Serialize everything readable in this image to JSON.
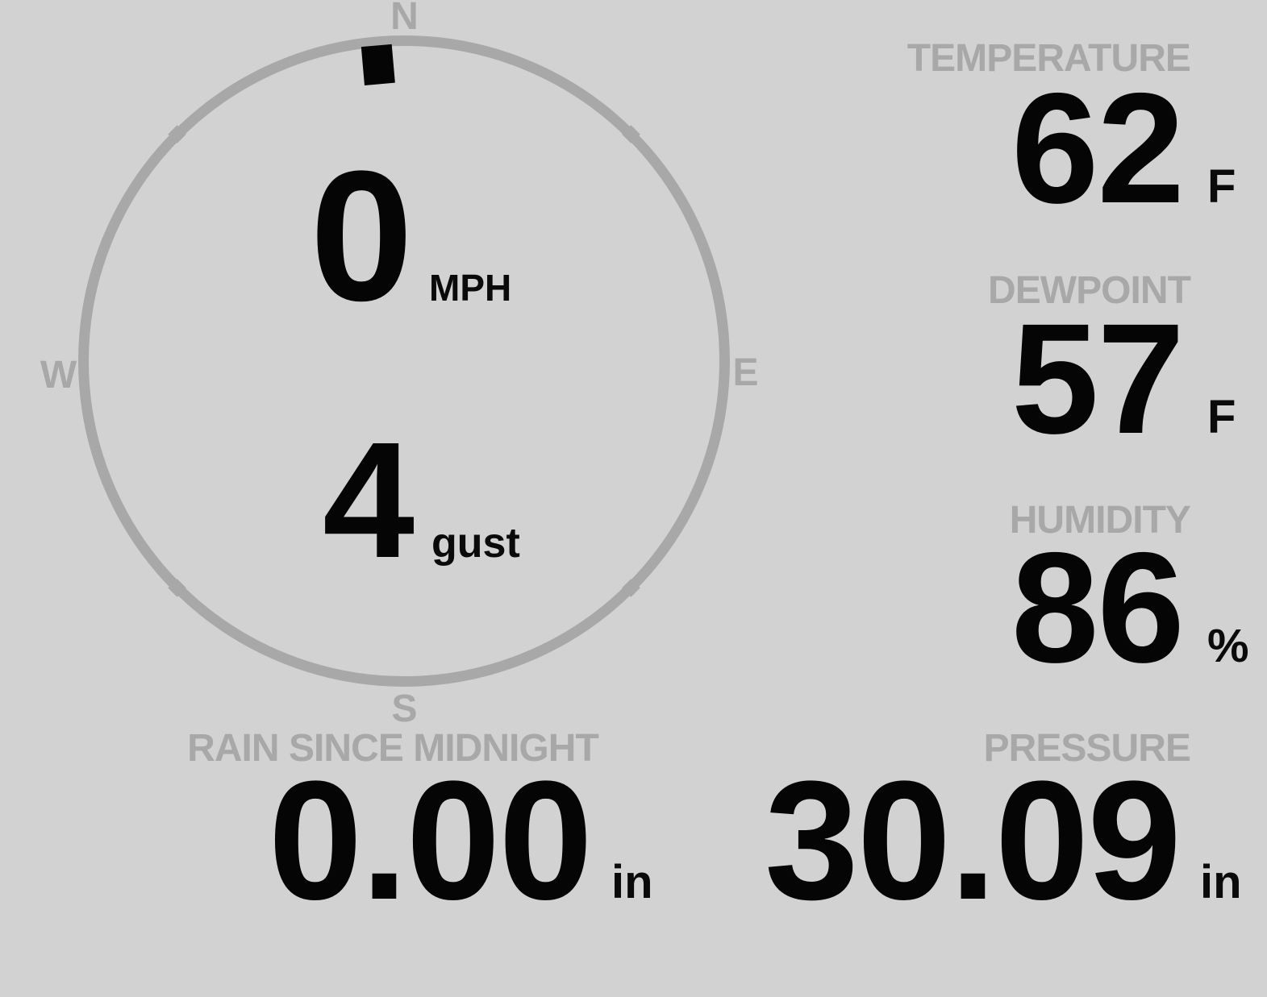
{
  "colors": {
    "background": "#d2d2d2",
    "muted_gray": "#a8a8a8",
    "ink_black": "#050505"
  },
  "compass": {
    "cardinal_n": "N",
    "cardinal_e": "E",
    "cardinal_s": "S",
    "cardinal_w": "W",
    "wind_speed": "0",
    "wind_speed_unit": "MPH",
    "wind_gust": "4",
    "wind_gust_unit": "gust",
    "wind_direction_deg": 355
  },
  "tiles": {
    "temperature": {
      "label": "TEMPERATURE",
      "value": "62",
      "unit": "F"
    },
    "dewpoint": {
      "label": "DEWPOINT",
      "value": "57",
      "unit": "F"
    },
    "humidity": {
      "label": "HUMIDITY",
      "value": "86",
      "unit": "%"
    },
    "rain": {
      "label": "RAIN SINCE MIDNIGHT",
      "value": "0.00",
      "unit": "in"
    },
    "pressure": {
      "label": "PRESSURE",
      "value": "30.09",
      "unit": "in"
    }
  }
}
